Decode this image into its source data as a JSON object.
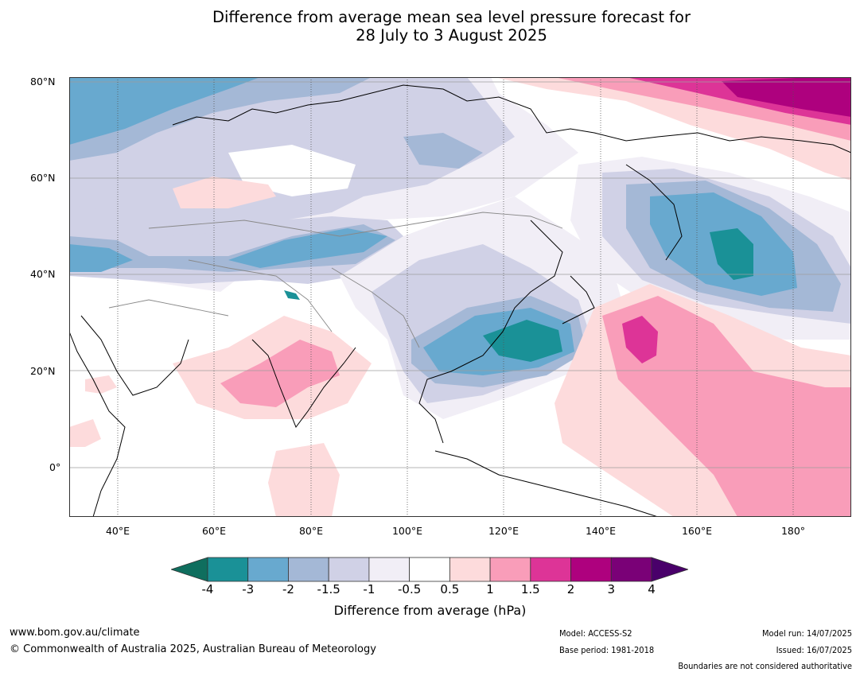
{
  "title_line1": "Difference from average mean sea level pressure forecast for",
  "title_line2": "28 July to 3 August 2025",
  "lat_labels": [
    "80°N",
    "60°N",
    "40°N",
    "20°N",
    "0°"
  ],
  "lon_labels": [
    "40°E",
    "60°E",
    "80°E",
    "100°E",
    "120°E",
    "140°E",
    "160°E",
    "180°"
  ],
  "colorbar": {
    "labels": [
      "-4",
      "-3",
      "-2",
      "-1.5",
      "-1",
      "-0.5",
      "0.5",
      "1",
      "1.5",
      "2",
      "3",
      "4"
    ],
    "colors": [
      "#0f6e5e",
      "#1a9197",
      "#68a9cf",
      "#a4b8d6",
      "#d0d1e6",
      "#f1eef6",
      "#ffffff",
      "#fddbdc",
      "#f99db9",
      "#dd3497",
      "#ae017e",
      "#7a0177",
      "#49006a"
    ],
    "title": "Difference from average (hPa)"
  },
  "footer": {
    "url": "www.bom.gov.au/climate",
    "copyright": "© Commonwealth of Australia 2025, Australian Bureau of Meteorology",
    "model": "Model: ACCESS-S2",
    "base_period": "Base period: 1981-2018",
    "model_run": "Model run: 14/07/2025",
    "issued": "Issued: 16/07/2025",
    "disclaimer": "Boundaries are not considered authoritative"
  }
}
